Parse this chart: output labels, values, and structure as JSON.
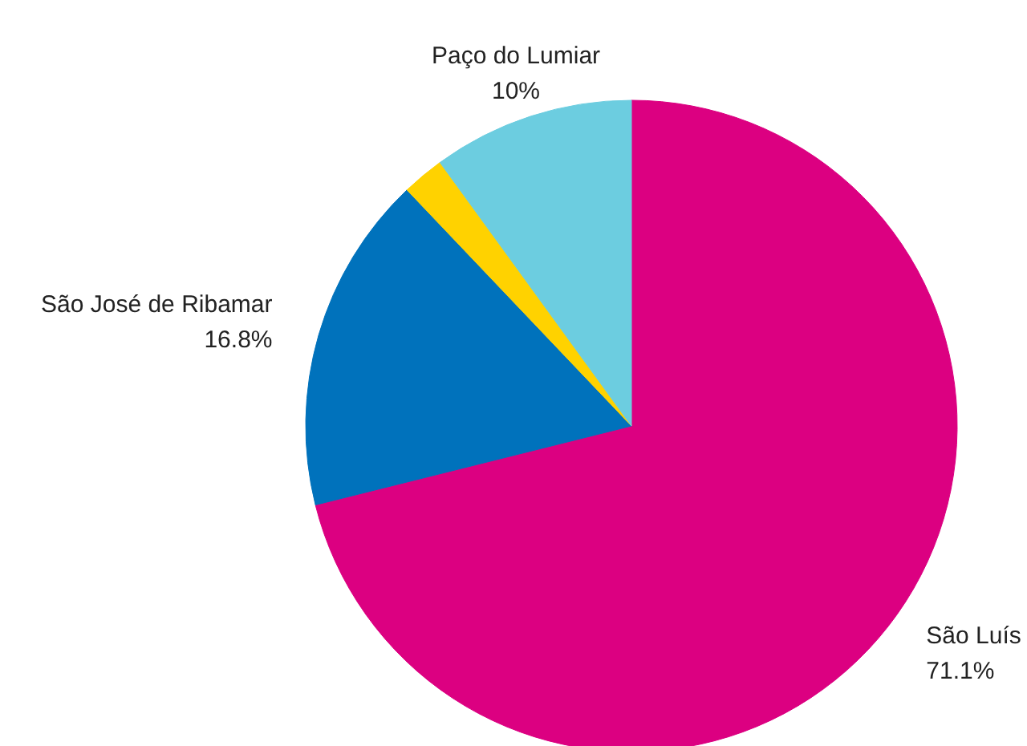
{
  "chart_data": {
    "type": "pie",
    "categories": [
      "São Luís",
      "São José de Ribamar",
      null,
      "Paço do Lumiar"
    ],
    "values": [
      71.1,
      16.8,
      2.1,
      10
    ],
    "colors": [
      "#dc0081",
      "#0072bc",
      "#ffd200",
      "#6ccde0"
    ],
    "value_labels": [
      "71.1%",
      "16.8%",
      null,
      "10%"
    ]
  }
}
